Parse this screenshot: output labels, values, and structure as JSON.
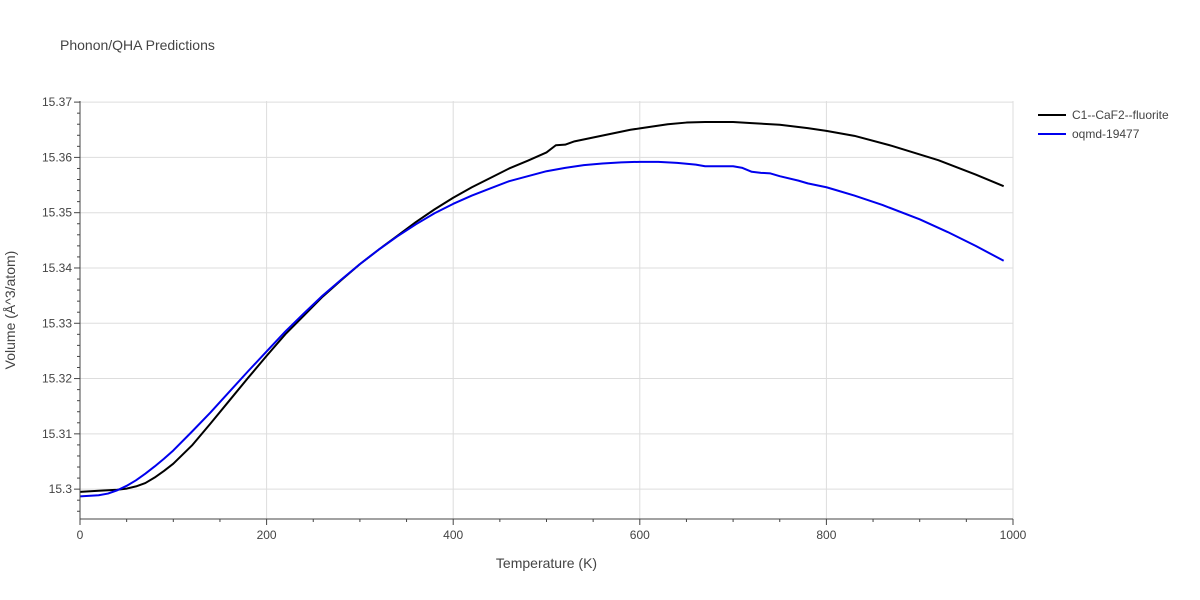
{
  "chart_data": {
    "type": "line",
    "title": "Phonon/QHA Predictions",
    "xlabel": "Temperature (K)",
    "ylabel": "Volume (Å^3/atom)",
    "xlim": [
      0,
      1000
    ],
    "ylim": [
      15.2946,
      15.3702
    ],
    "x_ticks": [
      0,
      200,
      400,
      600,
      800,
      1000
    ],
    "x_tick_labels": [
      "0",
      "200",
      "400",
      "600",
      "800",
      "1000"
    ],
    "y_ticks": [
      15.3,
      15.31,
      15.32,
      15.33,
      15.34,
      15.35,
      15.36,
      15.37
    ],
    "y_tick_labels": [
      "15.3",
      "15.31",
      "15.32",
      "15.33",
      "15.34",
      "15.35",
      "15.36",
      "15.37"
    ],
    "grid": true,
    "legend_position": "top-right",
    "series": [
      {
        "name": "C1--CaF2--fluorite",
        "color": "#000000",
        "x": [
          0,
          20,
          40,
          50,
          60,
          70,
          80,
          90,
          100,
          120,
          140,
          160,
          180,
          200,
          220,
          240,
          260,
          280,
          300,
          320,
          340,
          360,
          380,
          400,
          420,
          440,
          460,
          480,
          500,
          510,
          520,
          530,
          550,
          570,
          590,
          610,
          630,
          650,
          670,
          700,
          720,
          750,
          780,
          800,
          830,
          870,
          920,
          960,
          990
        ],
        "y": [
          15.2995,
          15.2997,
          15.2999,
          15.3001,
          15.3005,
          15.3011,
          15.3021,
          15.3033,
          15.3046,
          15.3079,
          15.3119,
          15.316,
          15.3201,
          15.3241,
          15.328,
          15.3314,
          15.3348,
          15.3378,
          15.3407,
          15.3433,
          15.3458,
          15.3483,
          15.3506,
          15.3527,
          15.3546,
          15.3563,
          15.358,
          15.3594,
          15.3609,
          15.3622,
          15.3623,
          15.3629,
          15.3636,
          15.3643,
          15.365,
          15.3655,
          15.366,
          15.3663,
          15.3664,
          15.3664,
          15.3662,
          15.3659,
          15.3653,
          15.3648,
          15.3639,
          15.3621,
          15.3595,
          15.3569,
          15.3548
        ]
      },
      {
        "name": "oqmd-19477",
        "color": "#0000ee",
        "x": [
          0,
          20,
          30,
          40,
          50,
          60,
          70,
          80,
          90,
          100,
          120,
          140,
          160,
          180,
          200,
          220,
          240,
          260,
          280,
          300,
          320,
          340,
          360,
          380,
          400,
          420,
          440,
          460,
          480,
          500,
          520,
          540,
          560,
          580,
          600,
          620,
          640,
          660,
          670,
          680,
          700,
          710,
          720,
          730,
          740,
          750,
          770,
          780,
          800,
          810,
          830,
          860,
          900,
          930,
          960,
          990
        ],
        "y": [
          15.2987,
          15.2989,
          15.2992,
          15.2998,
          15.3006,
          15.3016,
          15.3028,
          15.3041,
          15.3055,
          15.307,
          15.3104,
          15.3139,
          15.3176,
          15.3213,
          15.3249,
          15.3285,
          15.3318,
          15.335,
          15.3379,
          15.3407,
          15.3433,
          15.3457,
          15.3479,
          15.3499,
          15.3516,
          15.3531,
          15.3544,
          15.3557,
          15.3566,
          15.3575,
          15.3581,
          15.3586,
          15.3589,
          15.3591,
          15.3592,
          15.3592,
          15.359,
          15.3587,
          15.3584,
          15.3584,
          15.3584,
          15.3581,
          15.3574,
          15.3572,
          15.3571,
          15.3566,
          15.3558,
          15.3553,
          15.3546,
          15.3541,
          15.3531,
          15.3514,
          15.3488,
          15.3465,
          15.344,
          15.3413
        ]
      }
    ]
  }
}
